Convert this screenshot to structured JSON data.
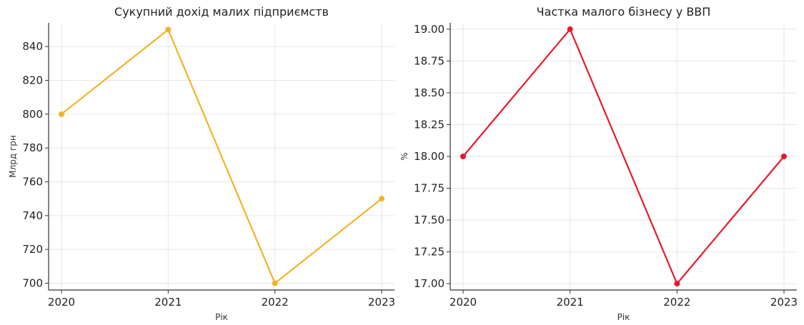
{
  "chart_data": [
    {
      "type": "line",
      "title": "Сукупний дохід малих підприємств",
      "xlabel": "Рік",
      "ylabel": "Млрд грн",
      "categories": [
        "2020",
        "2021",
        "2022",
        "2023"
      ],
      "series": [
        {
          "values": [
            800,
            850,
            700,
            750
          ],
          "color": "#F0B429"
        }
      ],
      "ylim": [
        696,
        854
      ],
      "yticks": [
        "700",
        "720",
        "740",
        "760",
        "780",
        "800",
        "820",
        "840"
      ],
      "grid": true,
      "legend": "none"
    },
    {
      "type": "line",
      "title": "Частка малого бізнесу у ВВП",
      "xlabel": "Рік",
      "ylabel": "%",
      "categories": [
        "2020",
        "2021",
        "2022",
        "2023"
      ],
      "series": [
        {
          "values": [
            18.0,
            19.0,
            17.0,
            18.0
          ],
          "color": "#E8192C"
        }
      ],
      "ylim": [
        16.95,
        19.05
      ],
      "yticks": [
        "17.00",
        "17.25",
        "17.50",
        "17.75",
        "18.00",
        "18.25",
        "18.50",
        "18.75",
        "19.00"
      ],
      "grid": true,
      "legend": "none"
    }
  ]
}
